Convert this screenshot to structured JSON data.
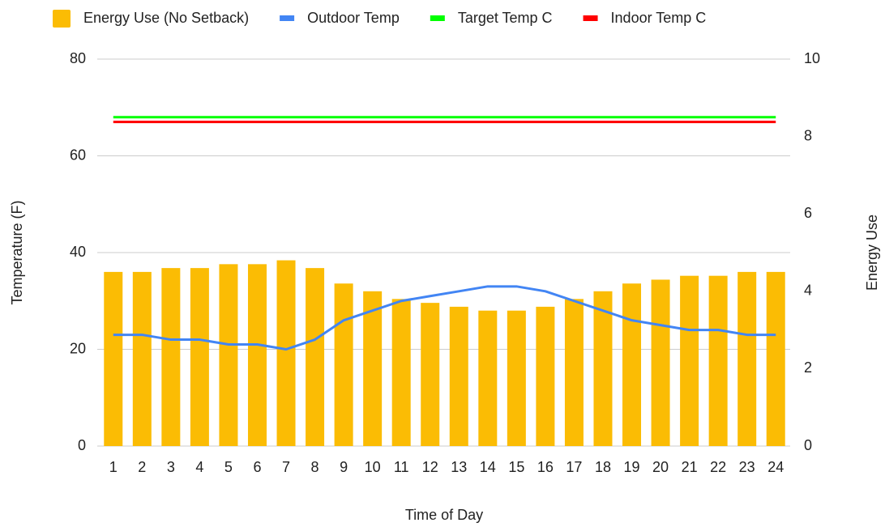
{
  "chart_data": {
    "type": "bar_line",
    "x_label": "Time of Day",
    "y_label": "Temperature (F)",
    "y2_label": "Energy Use",
    "categories": [
      "1",
      "2",
      "3",
      "4",
      "5",
      "6",
      "7",
      "8",
      "9",
      "10",
      "11",
      "12",
      "13",
      "14",
      "15",
      "16",
      "17",
      "18",
      "19",
      "20",
      "21",
      "22",
      "23",
      "24"
    ],
    "series": [
      {
        "name": "Energy Use (No Setback)",
        "type": "bar",
        "axis": "y2",
        "color": "#fbbc04",
        "values": [
          4.5,
          4.5,
          4.6,
          4.6,
          4.7,
          4.7,
          4.8,
          4.6,
          4.2,
          4.0,
          3.8,
          3.7,
          3.6,
          3.5,
          3.5,
          3.6,
          3.8,
          4.0,
          4.2,
          4.3,
          4.4,
          4.4,
          4.5,
          4.5
        ]
      },
      {
        "name": "Outdoor Temp",
        "type": "line",
        "color": "#4285f4",
        "values": [
          23,
          23,
          22,
          22,
          21,
          21,
          20,
          22,
          26,
          28,
          30,
          31,
          32,
          33,
          33,
          32,
          30,
          28,
          26,
          25,
          24,
          24,
          23,
          23
        ]
      },
      {
        "name": "Target Temp C",
        "type": "line",
        "color": "#00ff00",
        "values": [
          68,
          68,
          68,
          68,
          68,
          68,
          68,
          68,
          68,
          68,
          68,
          68,
          68,
          68,
          68,
          68,
          68,
          68,
          68,
          68,
          68,
          68,
          68,
          68
        ]
      },
      {
        "name": "Indoor Temp C",
        "type": "line",
        "color": "#ff0000",
        "values": [
          67,
          67,
          67,
          67,
          67,
          67,
          67,
          67,
          67,
          67,
          67,
          67,
          67,
          67,
          67,
          67,
          67,
          67,
          67,
          67,
          67,
          67,
          67,
          67
        ]
      }
    ],
    "ylim": [
      0,
      80
    ],
    "yticks": [
      0,
      20,
      40,
      60,
      80
    ],
    "y2lim": [
      0,
      10
    ],
    "y2ticks": [
      0,
      2,
      4,
      6,
      8,
      10
    ],
    "grid": true
  }
}
